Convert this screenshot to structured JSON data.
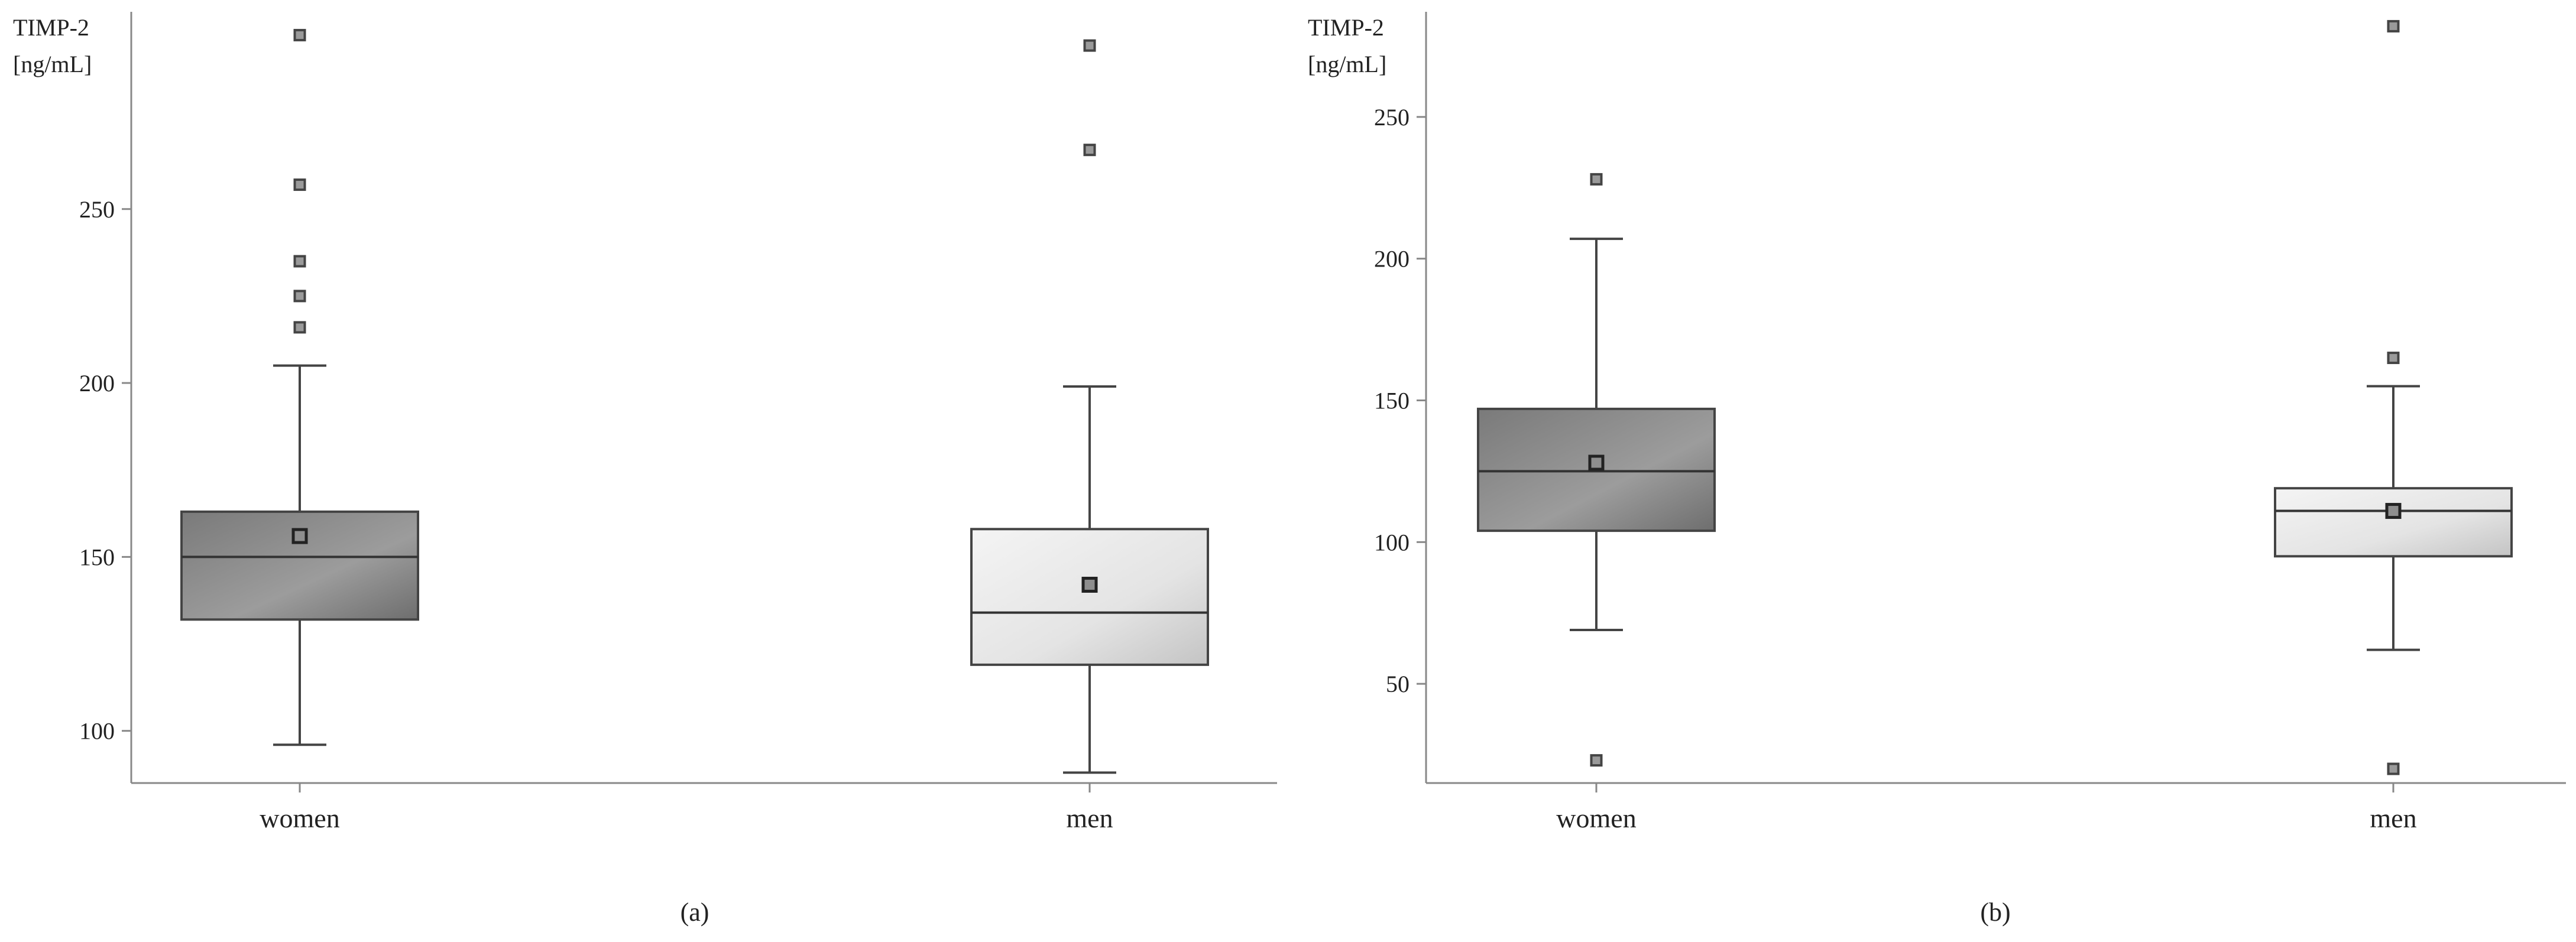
{
  "colors": {
    "women_box": "#8a8a8a",
    "men_box": "#e6e6e6"
  },
  "chart_data": [
    {
      "type": "box",
      "panel_label": "(a)",
      "ylabel_line1": "TIMP-2",
      "ylabel_line2": "[ng/mL]",
      "ylim": [
        85,
        305
      ],
      "yticks": [
        100,
        150,
        200,
        250
      ],
      "categories": [
        "women",
        "men"
      ],
      "boxes": [
        {
          "category": "women",
          "whisker_low": 96,
          "q1": 132,
          "median": 150,
          "q3": 163,
          "whisker_high": 205,
          "mean": 156,
          "outliers": [
            216,
            225,
            235,
            257,
            300
          ]
        },
        {
          "category": "men",
          "whisker_low": 88,
          "q1": 119,
          "median": 134,
          "q3": 158,
          "whisker_high": 199,
          "mean": 142,
          "outliers": [
            267,
            297
          ]
        }
      ]
    },
    {
      "type": "box",
      "panel_label": "(b)",
      "ylabel_line1": "TIMP-2",
      "ylabel_line2": "[ng/mL]",
      "ylim": [
        15,
        285
      ],
      "yticks": [
        50,
        100,
        150,
        200,
        250
      ],
      "categories": [
        "women",
        "men"
      ],
      "boxes": [
        {
          "category": "women",
          "whisker_low": 69,
          "q1": 104,
          "median": 125,
          "q3": 147,
          "whisker_high": 207,
          "mean": 128,
          "outliers": [
            23,
            228
          ]
        },
        {
          "category": "men",
          "whisker_low": 62,
          "q1": 95,
          "median": 111,
          "q3": 119,
          "whisker_high": 155,
          "mean": 111,
          "outliers": [
            20,
            165,
            282
          ]
        }
      ]
    }
  ]
}
